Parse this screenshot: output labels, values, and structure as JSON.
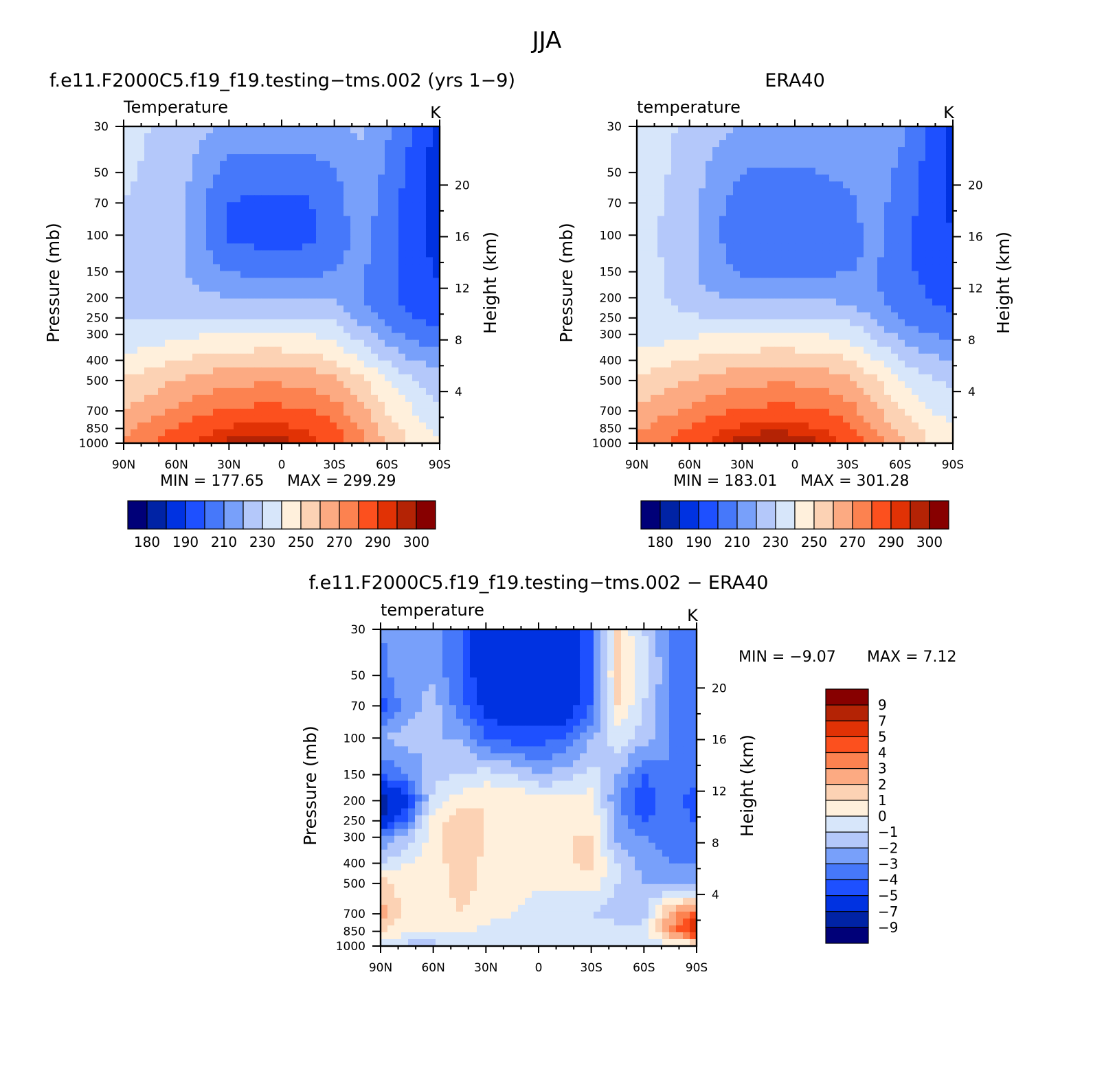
{
  "figure": {
    "main_title": "JJA"
  },
  "color_scales": {
    "abs_colors": [
      "#000078",
      "#0023a5",
      "#0032e1",
      "#1e50ff",
      "#4678fa",
      "#78a0fa",
      "#b4c8fa",
      "#d7e6fa",
      "#fff0dc",
      "#fcd2b4",
      "#fcaa82",
      "#fc8250",
      "#fc501e",
      "#e13205",
      "#b42305",
      "#870000"
    ],
    "abs_labels": [
      "180",
      "190",
      "210",
      "230",
      "250",
      "270",
      "290",
      "300"
    ],
    "abs_levels": [
      175,
      180,
      185,
      190,
      200,
      210,
      220,
      230,
      240,
      250,
      260,
      270,
      280,
      290,
      295,
      300,
      305
    ],
    "diff_colors": [
      "#000078",
      "#0023a5",
      "#0032e1",
      "#1e50ff",
      "#4678fa",
      "#78a0fa",
      "#b4c8fa",
      "#d7e6fa",
      "#fff0dc",
      "#fcd2b4",
      "#fcaa82",
      "#fc8250",
      "#fc501e",
      "#e13205",
      "#b42305",
      "#870000"
    ],
    "diff_labels": [
      "9",
      "7",
      "5",
      "4",
      "3",
      "2",
      "1",
      "0",
      "−1",
      "−2",
      "−3",
      "−4",
      "−5",
      "−7",
      "−9"
    ],
    "diff_levels": [
      -11,
      -9,
      -7,
      -5,
      -4,
      -3,
      -2,
      -1,
      0,
      1,
      2,
      3,
      4,
      5,
      7,
      9,
      11
    ]
  },
  "chart_data": [
    {
      "type": "heatmap",
      "id": "model",
      "title": "f.e11.F2000C5.f19_f19.testing−tms.002 (yrs 1−9)",
      "variable_label": "Temperature",
      "units": "K",
      "xlabel": "",
      "ylabel": "Pressure (mb)",
      "y2label": "Height (km)",
      "x_ticks": [
        "90N",
        "60N",
        "30N",
        "0",
        "30S",
        "60S",
        "90S"
      ],
      "x_values": [
        90,
        60,
        30,
        0,
        -30,
        -60,
        -90
      ],
      "y_ticks": [
        "30",
        "50",
        "70",
        "100",
        "150",
        "200",
        "250",
        "300",
        "400",
        "500",
        "700",
        "850",
        "1000"
      ],
      "y_values": [
        30,
        50,
        70,
        100,
        150,
        200,
        250,
        300,
        400,
        500,
        700,
        850,
        1000
      ],
      "y2_ticks": [
        "20",
        "16",
        "12",
        "8",
        "4"
      ],
      "y2_values": [
        20,
        16,
        12,
        8,
        4
      ],
      "min_label": "MIN = 177.65",
      "max_label": "MAX = 299.29",
      "min": 177.65,
      "max": 299.29,
      "lat": [
        90,
        75,
        60,
        45,
        30,
        15,
        0,
        -15,
        -30,
        -45,
        -60,
        -75,
        -90
      ],
      "levels": [
        30,
        50,
        70,
        100,
        150,
        200,
        250,
        300,
        400,
        500,
        700,
        850,
        1000
      ],
      "values": [
        [
          232,
          230,
          228,
          222,
          218,
          216,
          216,
          217,
          219,
          221,
          212,
          200,
          186
        ],
        [
          231,
          229,
          226,
          215,
          206,
          205,
          205,
          205,
          209,
          217,
          208,
          195,
          184
        ],
        [
          230,
          228,
          225,
          210,
          200,
          198,
          198,
          199,
          206,
          215,
          206,
          194,
          185
        ],
        [
          229,
          227,
          224,
          210,
          198,
          196,
          195,
          197,
          205,
          214,
          205,
          193,
          186
        ],
        [
          228,
          226,
          223,
          215,
          210,
          208,
          207,
          208,
          210,
          212,
          203,
          194,
          189
        ],
        [
          228,
          227,
          226,
          222,
          220,
          219,
          219,
          219,
          218,
          210,
          203,
          196,
          192
        ],
        [
          229,
          229,
          230,
          230,
          231,
          231,
          231,
          231,
          229,
          217,
          206,
          200,
          196
        ],
        [
          233,
          234,
          237,
          239,
          240,
          241,
          241,
          240,
          236,
          226,
          214,
          207,
          203
        ],
        [
          243,
          246,
          250,
          253,
          255,
          256,
          256,
          255,
          250,
          240,
          229,
          220,
          215
        ],
        [
          251,
          255,
          260,
          264,
          267,
          268,
          268,
          267,
          262,
          252,
          241,
          231,
          223
        ],
        [
          260,
          266,
          272,
          278,
          281,
          283,
          283,
          281,
          275,
          263,
          250,
          240,
          231
        ],
        [
          266,
          274,
          281,
          287,
          291,
          293,
          292,
          290,
          283,
          270,
          255,
          245,
          236
        ],
        [
          270,
          279,
          285,
          292,
          297,
          298,
          297,
          294,
          286,
          275,
          259,
          248,
          240
        ]
      ]
    },
    {
      "type": "heatmap",
      "id": "obs",
      "title": "ERA40",
      "variable_label": "temperature",
      "units": "K",
      "xlabel": "",
      "ylabel": "Pressure (mb)",
      "y2label": "Height (km)",
      "x_ticks": [
        "90N",
        "60N",
        "30N",
        "0",
        "30S",
        "60S",
        "90S"
      ],
      "x_values": [
        90,
        60,
        30,
        0,
        -30,
        -60,
        -90
      ],
      "y_ticks": [
        "30",
        "50",
        "70",
        "100",
        "150",
        "200",
        "250",
        "300",
        "400",
        "500",
        "700",
        "850",
        "1000"
      ],
      "y_values": [
        30,
        50,
        70,
        100,
        150,
        200,
        250,
        300,
        400,
        500,
        700,
        850,
        1000
      ],
      "y2_ticks": [
        "20",
        "16",
        "12",
        "8",
        "4"
      ],
      "y2_values": [
        20,
        16,
        12,
        8,
        4
      ],
      "min_label": "MIN = 183.01",
      "max_label": "MAX = 301.28",
      "min": 183.01,
      "max": 301.28,
      "lat": [
        90,
        75,
        60,
        45,
        30,
        15,
        0,
        -15,
        -30,
        -45,
        -60,
        -75,
        -90
      ],
      "levels": [
        30,
        50,
        70,
        100,
        150,
        200,
        250,
        300,
        400,
        500,
        700,
        850,
        1000
      ],
      "values": [
        [
          236,
          232,
          228,
          223,
          220,
          218,
          218,
          218,
          220,
          220,
          212,
          201,
          188
        ],
        [
          235,
          231,
          226,
          216,
          210,
          209,
          209,
          210,
          212,
          216,
          208,
          197,
          187
        ],
        [
          234,
          230,
          224,
          212,
          206,
          205,
          205,
          206,
          208,
          214,
          206,
          196,
          188
        ],
        [
          233,
          229,
          223,
          211,
          205,
          202,
          201,
          202,
          206,
          213,
          205,
          195,
          190
        ],
        [
          234,
          230,
          222,
          213,
          209,
          207,
          207,
          208,
          210,
          211,
          204,
          197,
          193
        ],
        [
          236,
          231,
          226,
          221,
          219,
          218,
          218,
          218,
          217,
          212,
          206,
          200,
          197
        ],
        [
          236,
          233,
          231,
          230,
          230,
          231,
          231,
          231,
          229,
          219,
          209,
          204,
          201
        ],
        [
          237,
          236,
          238,
          240,
          241,
          241,
          241,
          240,
          237,
          228,
          217,
          211,
          207
        ],
        [
          244,
          247,
          251,
          254,
          255,
          256,
          256,
          255,
          251,
          241,
          230,
          223,
          219
        ],
        [
          252,
          256,
          260,
          264,
          267,
          268,
          268,
          267,
          262,
          252,
          241,
          233,
          227
        ],
        [
          261,
          267,
          272,
          278,
          281,
          283,
          283,
          281,
          275,
          263,
          250,
          242,
          235
        ],
        [
          268,
          275,
          281,
          287,
          292,
          294,
          293,
          290,
          284,
          271,
          257,
          248,
          240
        ],
        [
          272,
          279,
          286,
          293,
          298,
          300,
          299,
          296,
          288,
          277,
          262,
          251,
          243
        ]
      ]
    },
    {
      "type": "heatmap",
      "id": "diff",
      "title": "f.e11.F2000C5.f19_f19.testing−tms.002 − ERA40",
      "variable_label": "temperature",
      "units": "K",
      "xlabel": "",
      "ylabel": "Pressure (mb)",
      "y2label": "Height (km)",
      "x_ticks": [
        "90N",
        "60N",
        "30N",
        "0",
        "30S",
        "60S",
        "90S"
      ],
      "x_values": [
        90,
        60,
        30,
        0,
        -30,
        -60,
        -90
      ],
      "y_ticks": [
        "30",
        "50",
        "70",
        "100",
        "150",
        "200",
        "250",
        "300",
        "400",
        "500",
        "700",
        "850",
        "1000"
      ],
      "y_values": [
        30,
        50,
        70,
        100,
        150,
        200,
        250,
        300,
        400,
        500,
        700,
        850,
        1000
      ],
      "y2_ticks": [
        "20",
        "16",
        "12",
        "8",
        "4"
      ],
      "y2_values": [
        20,
        16,
        12,
        8,
        4
      ],
      "min_label": "MIN =   −9.07",
      "max_label": "MAX =    7.12",
      "min": -9.07,
      "max": 7.12,
      "lat": [
        90,
        75,
        60,
        45,
        30,
        15,
        0,
        -15,
        -30,
        -45,
        -60,
        -75,
        -90
      ],
      "levels": [
        30,
        50,
        70,
        100,
        150,
        200,
        250,
        300,
        400,
        500,
        700,
        850,
        1000
      ],
      "values": [
        [
          -3.0,
          -2.0,
          -2.5,
          -4.0,
          -6.0,
          -6.5,
          -6.2,
          -6.0,
          -4.0,
          1.0,
          -1.0,
          -3.0,
          -4.0
        ],
        [
          -3.5,
          -2.0,
          -2.2,
          -4.0,
          -6.0,
          -6.0,
          -5.5,
          -6.0,
          -4.0,
          1.5,
          -0.5,
          -3.0,
          -4.0
        ],
        [
          -4.5,
          -2.5,
          -1.5,
          -3.5,
          -5.5,
          -6.0,
          -6.0,
          -6.0,
          -4.0,
          1.0,
          -1.0,
          -3.0,
          -3.5
        ],
        [
          -2.0,
          -1.5,
          -2.0,
          -2.0,
          -4.0,
          -4.5,
          -4.5,
          -4.0,
          -2.0,
          -0.5,
          -1.5,
          -3.0,
          -4.0
        ],
        [
          -4.0,
          -3.0,
          -1.5,
          -1.0,
          -0.5,
          -1.0,
          -2.0,
          -1.5,
          -0.5,
          -2.0,
          -4.0,
          -3.0,
          -3.0
        ],
        [
          -8.0,
          -5.5,
          -0.5,
          0.5,
          1.0,
          1.0,
          0.5,
          0.2,
          0.5,
          -3.0,
          -5.0,
          -3.0,
          -5.0
        ],
        [
          -7.0,
          -3.5,
          0.5,
          1.5,
          1.0,
          0.5,
          0.5,
          0.5,
          0.8,
          -2.5,
          -4.0,
          -3.5,
          -4.0
        ],
        [
          -3.0,
          -1.5,
          0.5,
          2.0,
          1.0,
          0.5,
          0.5,
          1.0,
          1.0,
          -2.5,
          -3.0,
          -3.5,
          -3.5
        ],
        [
          -1.0,
          0.0,
          0.5,
          1.5,
          0.8,
          0.5,
          0.5,
          0.8,
          1.5,
          -1.0,
          -2.5,
          -3.0,
          -3.0
        ],
        [
          1.5,
          0.5,
          0.5,
          1.5,
          0.8,
          0.3,
          0.2,
          0.5,
          0.5,
          -1.0,
          -2.0,
          -2.0,
          -2.5
        ],
        [
          2.5,
          0.5,
          0.0,
          1.0,
          0.5,
          0.0,
          -0.5,
          -1.0,
          -1.0,
          -1.5,
          -1.5,
          2.5,
          4.5
        ],
        [
          1.0,
          0.5,
          0.5,
          0.3,
          -0.5,
          -0.5,
          -0.5,
          -0.5,
          -0.5,
          -0.5,
          -0.5,
          3.0,
          6.5
        ],
        [
          -1.0,
          -1.5,
          -1.5,
          -1.0,
          -0.5,
          -0.5,
          -0.5,
          -0.5,
          -0.5,
          -0.5,
          -0.5,
          -0.5,
          -0.5
        ]
      ]
    }
  ]
}
